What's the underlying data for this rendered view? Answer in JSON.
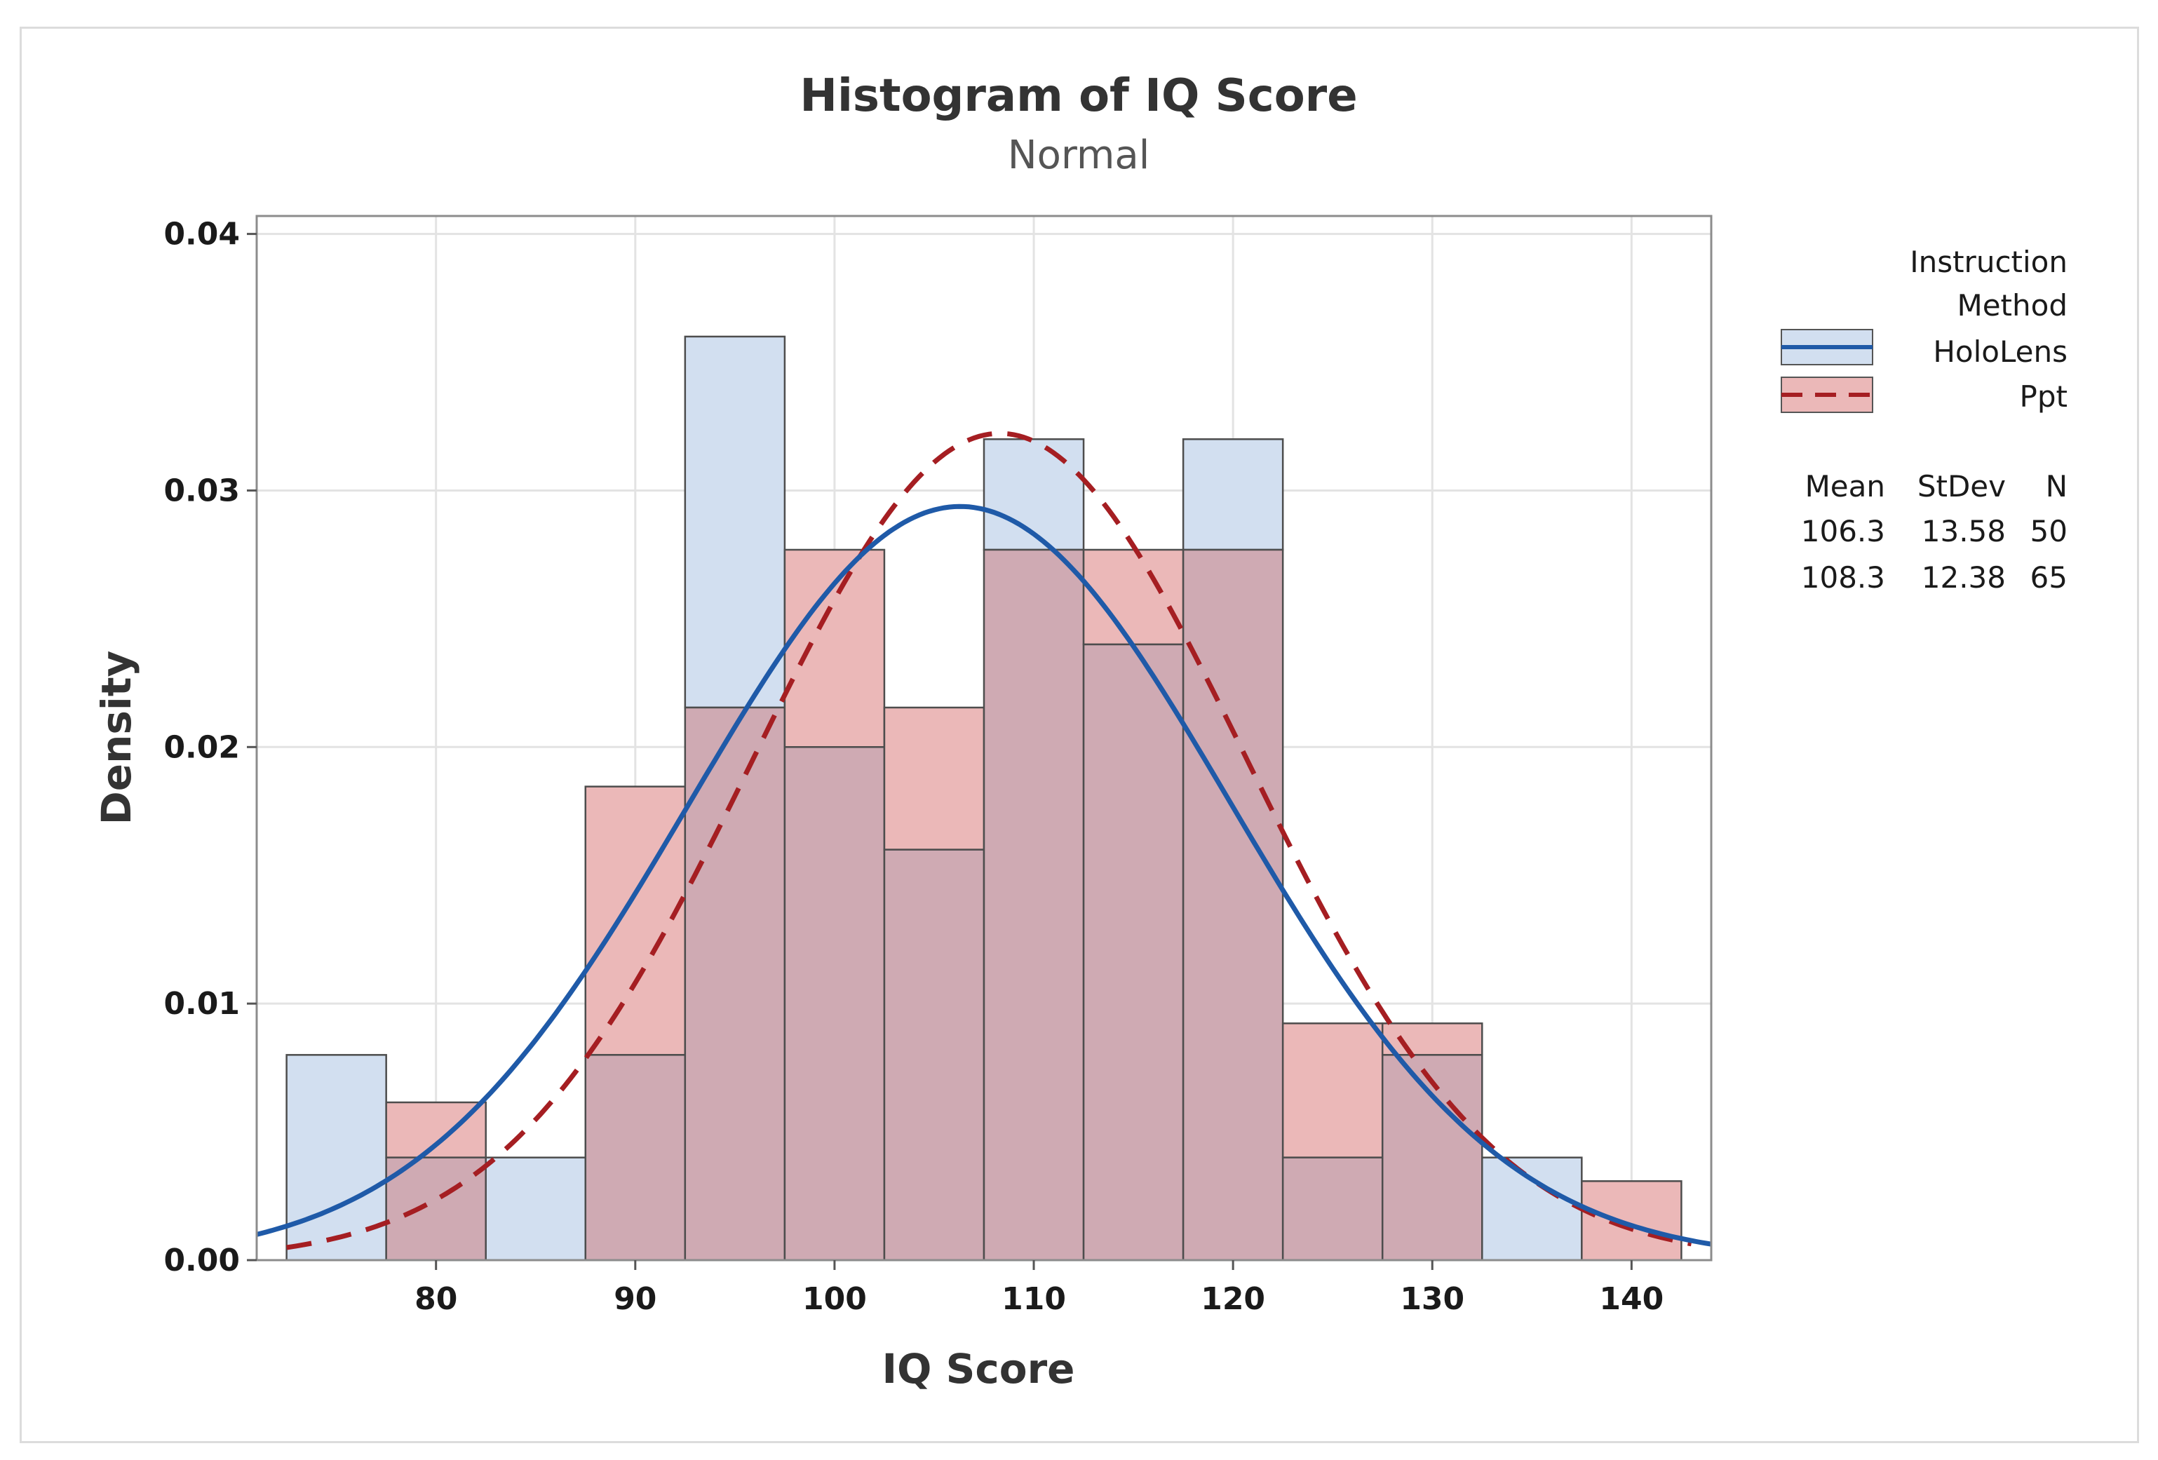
{
  "chart_data": {
    "type": "histogram",
    "title": "Histogram of IQ Score",
    "subtitle": "Normal",
    "xlabel": "IQ Score",
    "ylabel": "Density",
    "xlim": [
      71,
      144
    ],
    "ylim": [
      0,
      0.04
    ],
    "x_ticks": [
      80,
      90,
      100,
      110,
      120,
      130,
      140
    ],
    "x_tick_labels": [
      "80",
      "90",
      "100",
      "110",
      "120",
      "130",
      "140"
    ],
    "y_ticks": [
      0,
      0.01,
      0.02,
      0.03,
      0.04
    ],
    "y_tick_labels": [
      "0.00",
      "0.01",
      "0.02",
      "0.03",
      "0.04"
    ],
    "grid": true,
    "bin_width": 5,
    "bin_centers": [
      75,
      80,
      85,
      90,
      95,
      100,
      105,
      110,
      115,
      120,
      125,
      130,
      135,
      140
    ],
    "series": [
      {
        "name": "HoloLens",
        "fill": "#d2dff0",
        "curve_color": "#1f5aa8",
        "curve_style": "solid",
        "mean": 106.3,
        "stdev": 13.58,
        "n": 50,
        "values": [
          0.008,
          0.004,
          0.004,
          0.008,
          0.036,
          0.02,
          0.016,
          0.032,
          0.024,
          0.032,
          0.004,
          0.008,
          0.004,
          0
        ]
      },
      {
        "name": "Ppt",
        "fill": "#ebb8b8",
        "curve_color": "#a51e22",
        "curve_style": "dashed",
        "mean": 108.3,
        "stdev": 12.38,
        "n": 65,
        "values": [
          0,
          0.00615,
          0,
          0.01846,
          0.02154,
          0.02769,
          0.02154,
          0.02769,
          0.02769,
          0.02769,
          0.00923,
          0.00923,
          0,
          0.00308
        ]
      }
    ],
    "overlap_fill": "#cfaab3",
    "legend": {
      "placement": "right",
      "title_line1": "Instruction",
      "title_line2": "Method",
      "stats_headers": [
        "Mean",
        "StDev",
        "N"
      ],
      "stats_rows": [
        [
          "106.3",
          "13.58",
          "50"
        ],
        [
          "108.3",
          "12.38",
          "65"
        ]
      ]
    }
  }
}
